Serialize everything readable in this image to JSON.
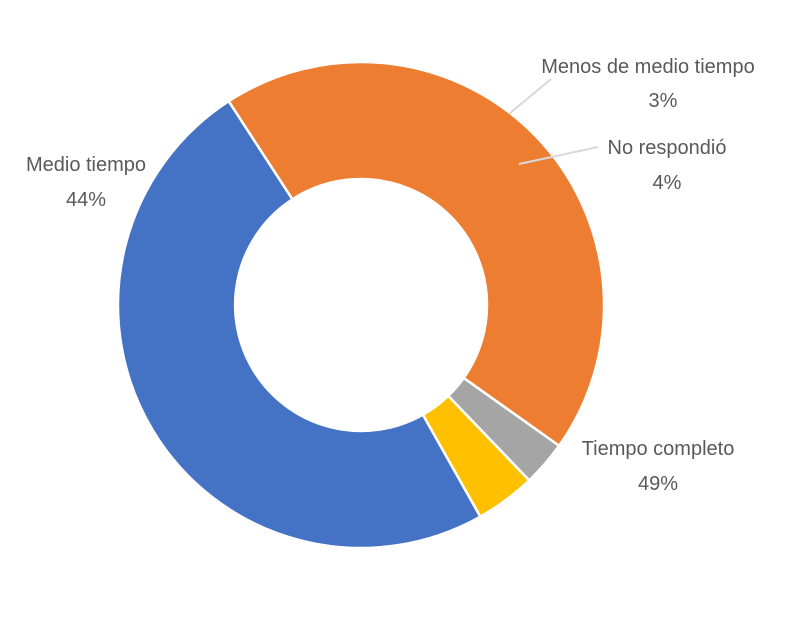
{
  "chart_data": {
    "type": "pie",
    "variant": "donut",
    "slices": [
      {
        "key": "tiempo_completo",
        "name": "Tiempo completo",
        "value": 49,
        "label": "49%",
        "color": "#4472C4"
      },
      {
        "key": "medio_tiempo",
        "name": "Medio tiempo",
        "value": 44,
        "label": "44%",
        "color": "#ED7D31"
      },
      {
        "key": "menos_medio_tiempo",
        "name": "Menos de medio tiempo",
        "value": 3,
        "label": "3%",
        "color": "#A5A5A5"
      },
      {
        "key": "no_respondio",
        "name": "No respondió",
        "value": 4,
        "label": "4%",
        "color": "#FFC000"
      }
    ],
    "legend": "none",
    "label_color": "#595959",
    "leader_line_color": "#D9D9D9"
  }
}
